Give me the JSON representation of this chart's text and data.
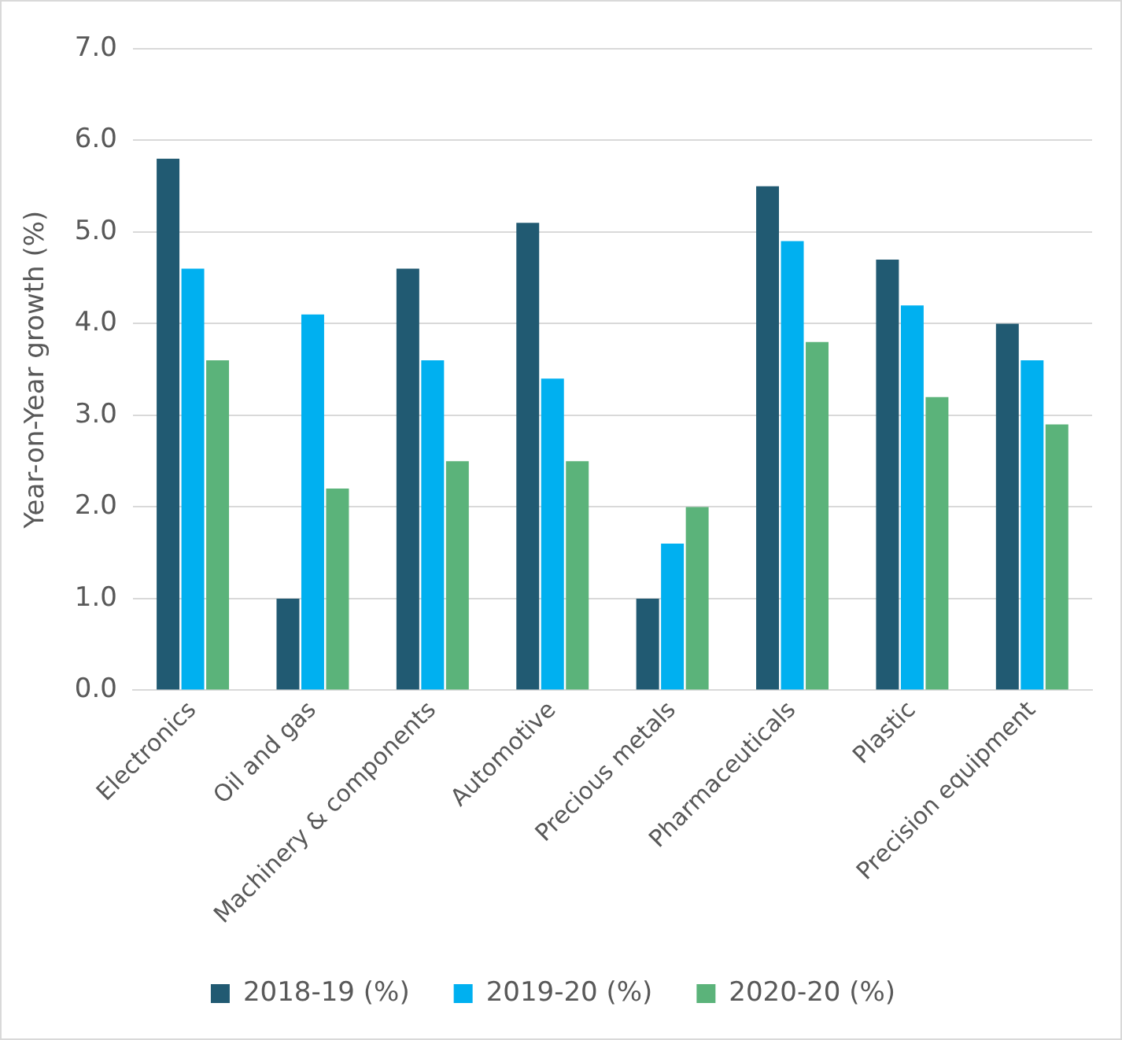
{
  "chart_data": {
    "type": "bar",
    "ylabel": "Year-on-Year growth (%)",
    "categories": [
      "Electronics",
      "Oil and gas",
      "Machinery & components",
      "Automotive",
      "Precious metals",
      "Pharmaceuticals",
      "Plastic",
      "Precision equipment"
    ],
    "series": [
      {
        "name": "2018-19 (%)",
        "color": "#215a72",
        "values": [
          5.8,
          1.0,
          4.6,
          5.1,
          1.0,
          5.5,
          4.7,
          4.0
        ]
      },
      {
        "name": "2019-20 (%)",
        "color": "#00b0f0",
        "values": [
          4.6,
          4.1,
          3.6,
          3.4,
          1.6,
          4.9,
          4.2,
          3.6
        ]
      },
      {
        "name": "2020-20 (%)",
        "color": "#5bb37a",
        "values": [
          3.6,
          2.2,
          2.5,
          2.5,
          2.0,
          3.8,
          3.2,
          2.9
        ]
      }
    ],
    "ylim": [
      0,
      7
    ],
    "yticks": [
      {
        "value": 0,
        "label": "0.0"
      },
      {
        "value": 1,
        "label": "1.0"
      },
      {
        "value": 2,
        "label": "2.0"
      },
      {
        "value": 3,
        "label": "3.0"
      },
      {
        "value": 4,
        "label": "4.0"
      },
      {
        "value": 5,
        "label": "5.0"
      },
      {
        "value": 6,
        "label": "6.0"
      },
      {
        "value": 7,
        "label": "7.0"
      }
    ],
    "grid": "y",
    "legend": "bottom"
  }
}
